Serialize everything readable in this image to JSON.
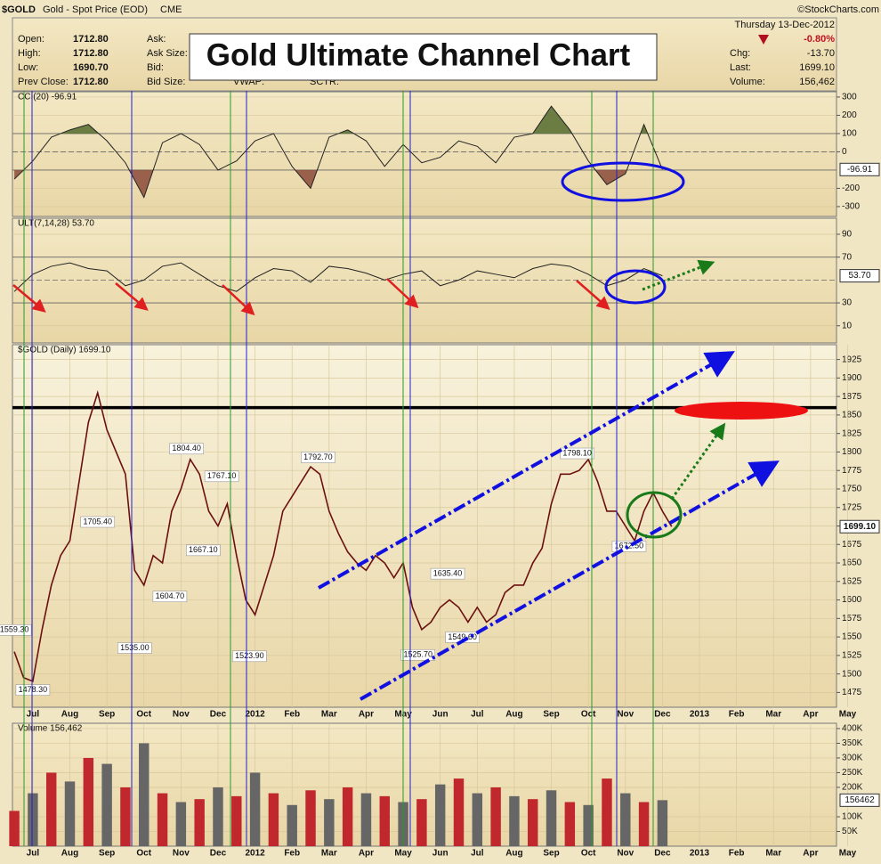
{
  "header": {
    "symbol": "$GOLD",
    "name": "Gold - Spot Price (EOD)",
    "exchange": "CME",
    "credit": "©StockCharts.com",
    "date": "Thursday 13-Dec-2012",
    "change_pct": "-0.80%",
    "fields": [
      {
        "label": "Open:",
        "value": "1712.80"
      },
      {
        "label": "High:",
        "value": "1712.80"
      },
      {
        "label": "Low:",
        "value": "1690.70"
      },
      {
        "label": "Prev Close:",
        "value": "1712.80"
      }
    ],
    "quote_labels": [
      "Ask:",
      "Ask Size:",
      "Bid:",
      "Bid Size:"
    ],
    "extra_labels": [
      "VWAP:",
      "SCTR:"
    ],
    "right_fields": [
      {
        "label": "Chg:",
        "value": "-13.70"
      },
      {
        "label": "Last:",
        "value": "1699.10"
      },
      {
        "label": "Volume:",
        "value": "156,462"
      }
    ]
  },
  "title": "Gold Ultimate Channel Chart",
  "chart_data": [
    {
      "type": "line",
      "label": "CCI(20) -96.91",
      "last_label": "-96.91",
      "color": "#222222",
      "fill_above": "#556b2f",
      "fill_below": "#8b4a3a",
      "xlim": [
        -0.55,
        21.7
      ],
      "ylim": [
        -354,
        329
      ],
      "yticks": [
        300,
        200,
        100,
        0,
        -200,
        -300
      ],
      "levels": [
        100,
        0,
        -100
      ],
      "x": [
        -0.5,
        0,
        0.5,
        1,
        1.5,
        2,
        2.5,
        3,
        3.5,
        4,
        4.5,
        5,
        5.5,
        6,
        6.5,
        7,
        7.5,
        8,
        8.5,
        9,
        9.5,
        10,
        10.5,
        11,
        11.5,
        12,
        12.5,
        13,
        13.5,
        14,
        14.5,
        15,
        15.5,
        16,
        16.5,
        17
      ],
      "values": [
        -150,
        -50,
        80,
        120,
        150,
        60,
        -60,
        -250,
        50,
        100,
        40,
        -100,
        -50,
        60,
        100,
        -80,
        -200,
        80,
        120,
        60,
        -80,
        40,
        -60,
        -30,
        60,
        30,
        -60,
        80,
        100,
        250,
        120,
        -50,
        -180,
        -120,
        150,
        -96.91
      ]
    },
    {
      "type": "line",
      "label": "ULT(7,14,28) 53.70",
      "last_label": "53.70",
      "color": "#222222",
      "xlim": [
        -0.55,
        21.7
      ],
      "ylim": [
        -5,
        104
      ],
      "yticks": [
        90,
        70,
        30,
        10
      ],
      "levels": [
        70,
        50,
        30
      ],
      "x": [
        -0.5,
        0,
        0.5,
        1,
        1.5,
        2,
        2.5,
        3,
        3.5,
        4,
        4.5,
        5,
        5.5,
        6,
        6.5,
        7,
        7.5,
        8,
        8.5,
        9,
        9.5,
        10,
        10.5,
        11,
        11.5,
        12,
        12.5,
        13,
        13.5,
        14,
        14.5,
        15,
        15.5,
        16,
        16.5,
        17
      ],
      "values": [
        40,
        55,
        62,
        65,
        60,
        58,
        45,
        50,
        62,
        65,
        55,
        45,
        40,
        52,
        60,
        58,
        48,
        62,
        60,
        56,
        50,
        55,
        58,
        45,
        50,
        58,
        55,
        52,
        60,
        64,
        62,
        55,
        45,
        50,
        60,
        53.7
      ]
    },
    {
      "type": "line",
      "label": "$GOLD (Daily) 1699.10",
      "last_label": "1699.10",
      "color": "#6b1010",
      "hline": 1860,
      "xlim": [
        -0.55,
        21.7
      ],
      "ylim": [
        1455,
        1945
      ],
      "yticks": [
        1475,
        1500,
        1525,
        1550,
        1575,
        1600,
        1625,
        1650,
        1675,
        1700,
        1725,
        1750,
        1775,
        1800,
        1825,
        1850,
        1875,
        1900,
        1925
      ],
      "xticks": [
        {
          "value": 0,
          "label": "Jul"
        },
        {
          "value": 1,
          "label": "Aug"
        },
        {
          "value": 2,
          "label": "Sep"
        },
        {
          "value": 3,
          "label": "Oct"
        },
        {
          "value": 4,
          "label": "Nov"
        },
        {
          "value": 5,
          "label": "Dec"
        },
        {
          "value": 6,
          "label": "2012"
        },
        {
          "value": 7,
          "label": "Feb"
        },
        {
          "value": 8,
          "label": "Mar"
        },
        {
          "value": 9,
          "label": "Apr"
        },
        {
          "value": 10,
          "label": "May"
        },
        {
          "value": 11,
          "label": "Jun"
        },
        {
          "value": 12,
          "label": "Jul"
        },
        {
          "value": 13,
          "label": "Aug"
        },
        {
          "value": 14,
          "label": "Sep"
        },
        {
          "value": 15,
          "label": "Oct"
        },
        {
          "value": 16,
          "label": "Nov"
        },
        {
          "value": 17,
          "label": "Dec"
        },
        {
          "value": 18,
          "label": "2013"
        },
        {
          "value": 19,
          "label": "Feb"
        },
        {
          "value": 20,
          "label": "Mar"
        },
        {
          "value": 21,
          "label": "Apr"
        },
        {
          "value": 22,
          "label": "May"
        }
      ],
      "x": [
        -0.5,
        -0.25,
        0,
        0.25,
        0.5,
        0.75,
        1,
        1.25,
        1.5,
        1.75,
        2,
        2.25,
        2.5,
        2.75,
        3,
        3.25,
        3.5,
        3.75,
        4,
        4.25,
        4.5,
        4.75,
        5,
        5.25,
        5.5,
        5.75,
        6,
        6.25,
        6.5,
        6.75,
        7,
        7.25,
        7.5,
        7.75,
        8,
        8.25,
        8.5,
        8.75,
        9,
        9.25,
        9.5,
        9.75,
        10,
        10.25,
        10.5,
        10.75,
        11,
        11.25,
        11.5,
        11.75,
        12,
        12.25,
        12.5,
        12.75,
        13,
        13.25,
        13.5,
        13.75,
        14,
        14.25,
        14.5,
        14.75,
        15,
        15.25,
        15.5,
        15.75,
        16,
        16.25,
        16.5,
        16.75,
        17,
        17.25
      ],
      "values": [
        1530,
        1495,
        1490,
        1560,
        1620,
        1660,
        1680,
        1760,
        1840,
        1880,
        1830,
        1800,
        1770,
        1640,
        1620,
        1660,
        1650,
        1720,
        1750,
        1790,
        1770,
        1720,
        1700,
        1730,
        1660,
        1600,
        1580,
        1620,
        1660,
        1720,
        1740,
        1760,
        1780,
        1770,
        1720,
        1690,
        1665,
        1650,
        1640,
        1660,
        1650,
        1630,
        1650,
        1590,
        1560,
        1570,
        1590,
        1600,
        1590,
        1570,
        1590,
        1570,
        1580,
        1610,
        1620,
        1620,
        1650,
        1670,
        1730,
        1770,
        1770,
        1775,
        1790,
        1760,
        1720,
        1720,
        1700,
        1680,
        1720,
        1745,
        1720,
        1699.1
      ],
      "annotations": [
        {
          "label": "1559.30",
          "x": -0.5,
          "value": 1559.3
        },
        {
          "label": "1478.30",
          "x": 0,
          "value": 1478.3
        },
        {
          "label": "1705.40",
          "x": 1.75,
          "value": 1705.4
        },
        {
          "label": "1804.40",
          "x": 4.15,
          "value": 1804.4
        },
        {
          "label": "1767.10",
          "x": 5.1,
          "value": 1767.1
        },
        {
          "label": "1667.10",
          "x": 4.6,
          "value": 1667.1
        },
        {
          "label": "1604.70",
          "x": 3.7,
          "value": 1604.7
        },
        {
          "label": "1535.00",
          "x": 2.75,
          "value": 1535
        },
        {
          "label": "1523.90",
          "x": 5.85,
          "value": 1523.9
        },
        {
          "label": "1792.70",
          "x": 7.7,
          "value": 1792.7
        },
        {
          "label": "1635.40",
          "x": 11.2,
          "value": 1635.4
        },
        {
          "label": "1549.60",
          "x": 11.6,
          "value": 1549.6
        },
        {
          "label": "1525.70",
          "x": 10.4,
          "value": 1525.7
        },
        {
          "label": "1798.10",
          "x": 14.7,
          "value": 1798.1
        },
        {
          "label": "1672.50",
          "x": 16.1,
          "value": 1672.5
        }
      ]
    },
    {
      "type": "bar",
      "label": "Volume 156,462",
      "last_label": "156462",
      "colors": [
        "#c0282d",
        "#666666"
      ],
      "xlim": [
        -0.55,
        21.7
      ],
      "ylim": [
        0,
        418000
      ],
      "yticks": [
        {
          "value": 50000,
          "label": "50K"
        },
        {
          "value": 100000,
          "label": "100K"
        },
        {
          "value": 200000,
          "label": "200K"
        },
        {
          "value": 250000,
          "label": "250K"
        },
        {
          "value": 300000,
          "label": "300K"
        },
        {
          "value": 350000,
          "label": "350K"
        },
        {
          "value": 400000,
          "label": "400K"
        }
      ],
      "xticks": [
        {
          "value": 0,
          "label": "Jul"
        },
        {
          "value": 1,
          "label": "Aug"
        },
        {
          "value": 2,
          "label": "Sep"
        },
        {
          "value": 3,
          "label": "Oct"
        },
        {
          "value": 4,
          "label": "Nov"
        },
        {
          "value": 5,
          "label": "Dec"
        },
        {
          "value": 6,
          "label": "2012"
        },
        {
          "value": 7,
          "label": "Feb"
        },
        {
          "value": 8,
          "label": "Mar"
        },
        {
          "value": 9,
          "label": "Apr"
        },
        {
          "value": 10,
          "label": "May"
        },
        {
          "value": 11,
          "label": "Jun"
        },
        {
          "value": 12,
          "label": "Jul"
        },
        {
          "value": 13,
          "label": "Aug"
        },
        {
          "value": 14,
          "label": "Sep"
        },
        {
          "value": 15,
          "label": "Oct"
        },
        {
          "value": 16,
          "label": "Nov"
        },
        {
          "value": 17,
          "label": "Dec"
        },
        {
          "value": 18,
          "label": "2013"
        },
        {
          "value": 19,
          "label": "Feb"
        },
        {
          "value": 20,
          "label": "Mar"
        },
        {
          "value": 21,
          "label": "Apr"
        },
        {
          "value": 22,
          "label": "May"
        }
      ],
      "x": [
        -0.5,
        0,
        0.5,
        1,
        1.5,
        2,
        2.5,
        3,
        3.5,
        4,
        4.5,
        5,
        5.5,
        6,
        6.5,
        7,
        7.5,
        8,
        8.5,
        9,
        9.5,
        10,
        10.5,
        11,
        11.5,
        12,
        12.5,
        13,
        13.5,
        14,
        14.5,
        15,
        15.5,
        16,
        16.5,
        17
      ],
      "values": [
        120000,
        180000,
        250000,
        220000,
        300000,
        280000,
        200000,
        350000,
        180000,
        150000,
        160000,
        200000,
        170000,
        250000,
        180000,
        140000,
        190000,
        160000,
        200000,
        180000,
        170000,
        150000,
        160000,
        210000,
        230000,
        180000,
        200000,
        170000,
        160000,
        190000,
        150000,
        140000,
        230000,
        180000,
        150000,
        156462
      ]
    }
  ]
}
